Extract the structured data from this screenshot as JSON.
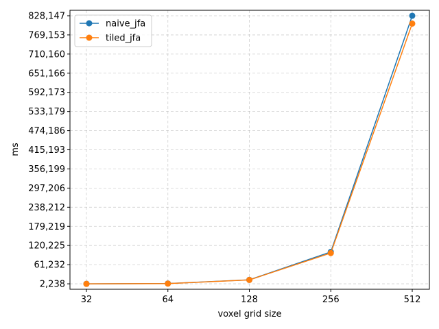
{
  "chart_data": {
    "type": "line",
    "x": [
      32,
      64,
      128,
      256,
      512
    ],
    "x_scale": "log2",
    "xlabel": "voxel grid size",
    "ylabel": "ms",
    "ylim": [
      -14500,
      845000
    ],
    "yticks": [
      2238,
      61232,
      120225,
      179219,
      238212,
      297206,
      356199,
      415193,
      474186,
      533179,
      592173,
      651166,
      710160,
      769153,
      828147
    ],
    "ytick_labels": [
      "2,238",
      "61,232",
      "120,225",
      "179,219",
      "238,212",
      "297,206",
      "356,199",
      "415,193",
      "474,186",
      "533,179",
      "592,173",
      "651,166",
      "710,160",
      "769,153",
      "828,147"
    ],
    "xtick_labels": [
      "32",
      "64",
      "128",
      "256",
      "512"
    ],
    "grid": true,
    "legend": "top-left",
    "series": [
      {
        "name": "naive_jfa",
        "color": "#1f77b4",
        "marker": "circle",
        "values": [
          2238,
          3200,
          14500,
          100500,
          828147
        ]
      },
      {
        "name": "tiled_jfa",
        "color": "#ff7f0e",
        "marker": "circle",
        "values": [
          2100,
          2900,
          14200,
          97000,
          804000
        ]
      }
    ]
  }
}
